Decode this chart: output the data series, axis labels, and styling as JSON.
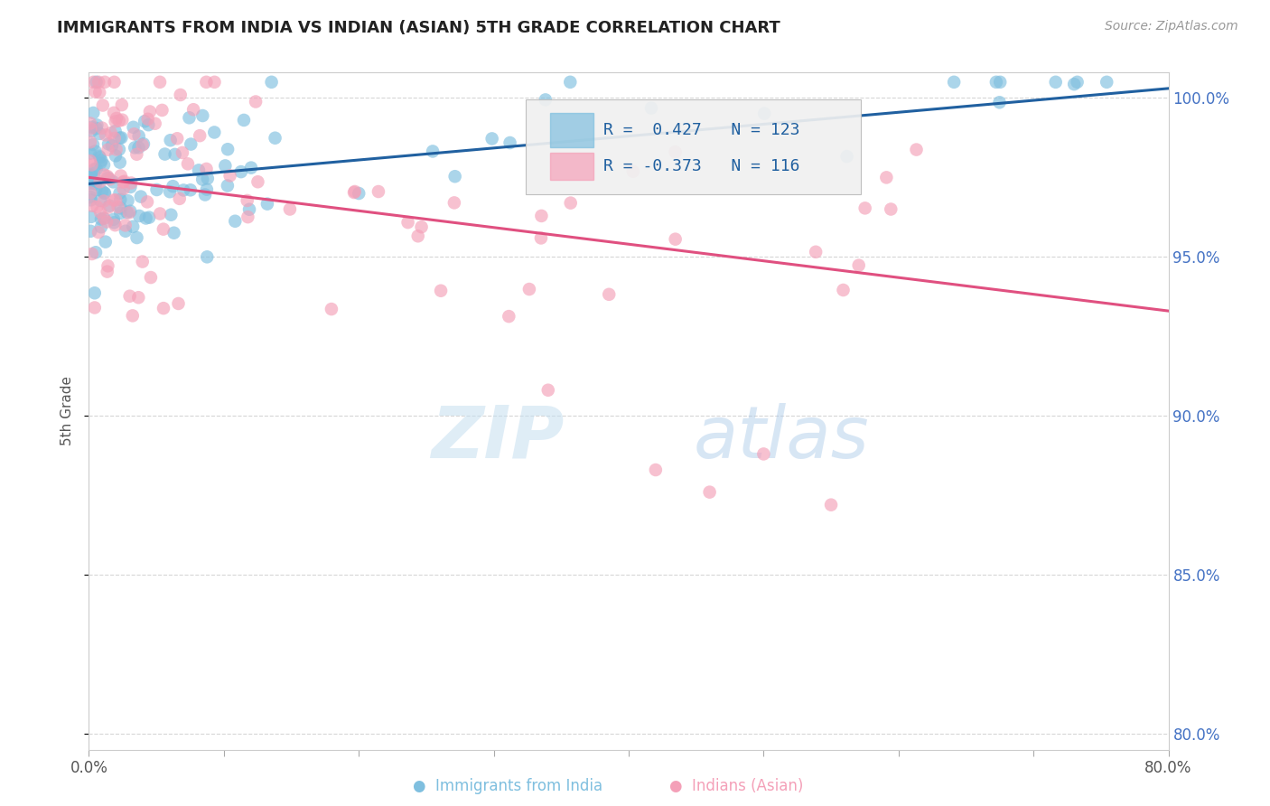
{
  "title": "IMMIGRANTS FROM INDIA VS INDIAN (ASIAN) 5TH GRADE CORRELATION CHART",
  "source": "Source: ZipAtlas.com",
  "ylabel": "5th Grade",
  "x_min": 0.0,
  "x_max": 0.8,
  "y_min": 0.795,
  "y_max": 1.008,
  "blue_color": "#7fbfdf",
  "pink_color": "#f4a0b8",
  "blue_line_color": "#2060a0",
  "pink_line_color": "#e05080",
  "R_blue": 0.427,
  "N_blue": 123,
  "R_pink": -0.373,
  "N_pink": 116,
  "watermark_zip": "ZIP",
  "watermark_atlas": "atlas",
  "blue_trend_x0": 0.0,
  "blue_trend_y0": 0.973,
  "blue_trend_x1": 0.8,
  "blue_trend_y1": 1.003,
  "pink_trend_x0": 0.0,
  "pink_trend_y0": 0.975,
  "pink_trend_x1": 0.8,
  "pink_trend_y1": 0.933,
  "seed": 42
}
